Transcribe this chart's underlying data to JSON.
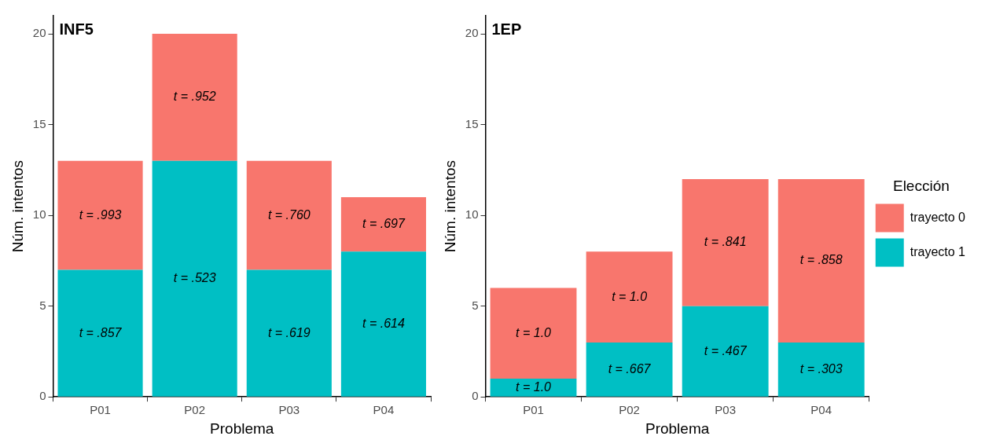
{
  "chart_data": [
    {
      "type": "bar",
      "title": "INF5",
      "xlabel": "Problema",
      "ylabel": "Núm. intentos",
      "categories": [
        "P01",
        "P02",
        "P03",
        "P04"
      ],
      "stacked": true,
      "ylim": [
        0,
        21
      ],
      "yticks": [
        0,
        5,
        10,
        15,
        20
      ],
      "grid": false,
      "legend": false,
      "series": [
        {
          "color": "#00bfc4",
          "values": [
            7,
            13,
            7,
            8
          ]
        },
        {
          "color": "#f8766d",
          "values": [
            6,
            7,
            6,
            3
          ]
        }
      ],
      "annotations": [
        "t = .857",
        "t = .523",
        "t = .619",
        "t = .614",
        "t = .993",
        "t = .952",
        "t = .760",
        "t = .697"
      ]
    },
    {
      "type": "bar",
      "title": "1EP",
      "xlabel": "Problema",
      "ylabel": "Núm. intentos",
      "categories": [
        "P01",
        "P02",
        "P03",
        "P04"
      ],
      "stacked": true,
      "ylim": [
        0,
        21
      ],
      "yticks": [
        0,
        5,
        10,
        15,
        20
      ],
      "grid": false,
      "legend": "right",
      "legend_title": "Elección",
      "series": [
        {
          "name": "trayecto 1",
          "color": "#00bfc4",
          "values": [
            1,
            3,
            5,
            3
          ]
        },
        {
          "name": "trayecto 0",
          "color": "#f8766d",
          "values": [
            5,
            5,
            7,
            9
          ]
        }
      ],
      "annotations": [
        "t = 1.0",
        "t = .667",
        "t = .467",
        "t = .303",
        "t = 1.0",
        "t = 1.0",
        "t = .841",
        "t = .858"
      ]
    }
  ]
}
